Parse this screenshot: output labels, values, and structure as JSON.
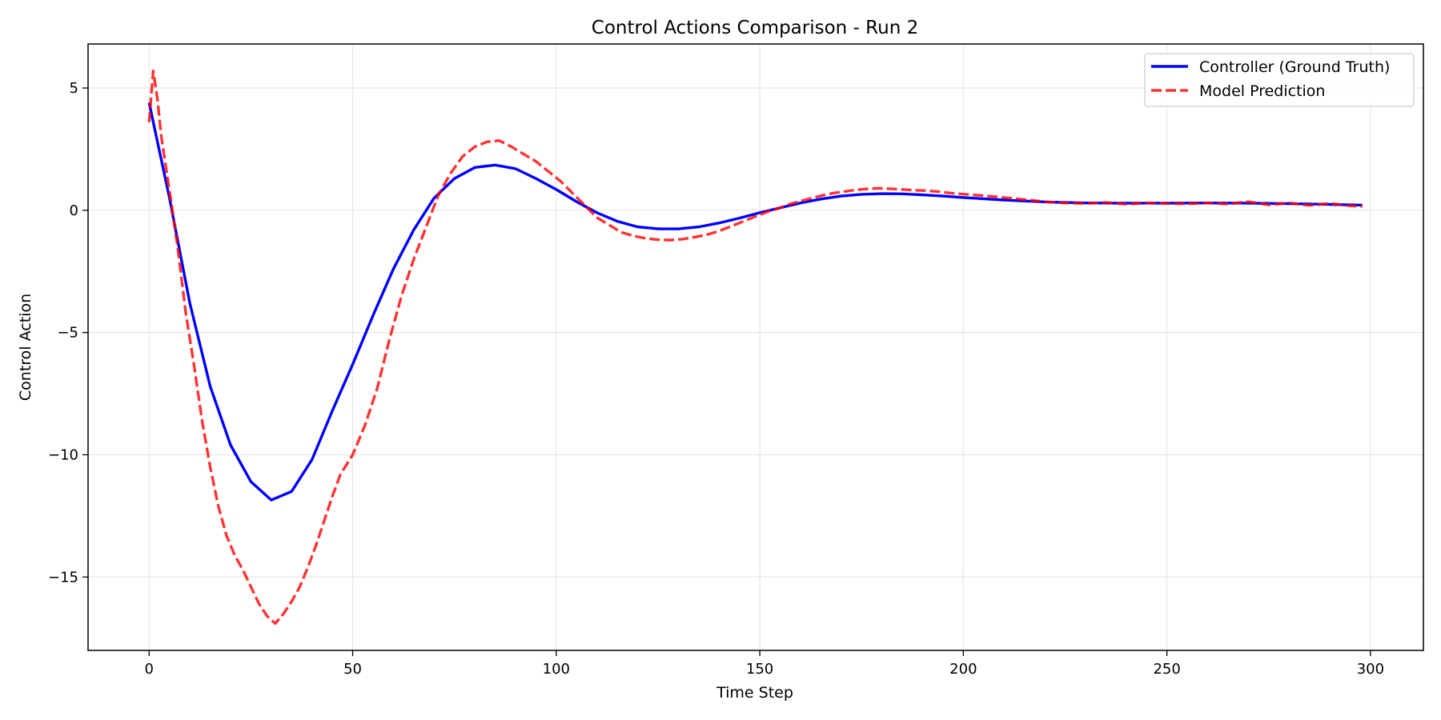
{
  "chart_data": {
    "type": "line",
    "title": "Control Actions Comparison - Run 2",
    "xlabel": "Time Step",
    "ylabel": "Control Action",
    "xlim": [
      -15,
      313
    ],
    "ylim": [
      -18,
      6.8
    ],
    "grid": true,
    "legend_position": "top-right",
    "x_ticks": [
      0,
      50,
      100,
      150,
      200,
      250,
      300
    ],
    "y_ticks": [
      5,
      0,
      -5,
      -10,
      -15
    ],
    "y_tick_labels": [
      "5",
      "0",
      "−5",
      "−10",
      "−15"
    ],
    "x_tick_labels": [
      "0",
      "50",
      "100",
      "150",
      "200",
      "250",
      "300"
    ],
    "series": [
      {
        "name": "Controller (Ground Truth)",
        "color": "#0000ff",
        "style": "solid",
        "points": [
          [
            0,
            4.4
          ],
          [
            5,
            0.5
          ],
          [
            10,
            -3.8
          ],
          [
            15,
            -7.2
          ],
          [
            20,
            -9.6
          ],
          [
            25,
            -11.1
          ],
          [
            30,
            -11.85
          ],
          [
            35,
            -11.5
          ],
          [
            40,
            -10.2
          ],
          [
            45,
            -8.2
          ],
          [
            50,
            -6.3
          ],
          [
            55,
            -4.3
          ],
          [
            60,
            -2.4
          ],
          [
            65,
            -0.8
          ],
          [
            70,
            0.5
          ],
          [
            75,
            1.3
          ],
          [
            80,
            1.75
          ],
          [
            85,
            1.85
          ],
          [
            90,
            1.7
          ],
          [
            95,
            1.3
          ],
          [
            100,
            0.85
          ],
          [
            105,
            0.35
          ],
          [
            110,
            -0.1
          ],
          [
            115,
            -0.45
          ],
          [
            120,
            -0.68
          ],
          [
            125,
            -0.76
          ],
          [
            130,
            -0.76
          ],
          [
            135,
            -0.68
          ],
          [
            140,
            -0.52
          ],
          [
            145,
            -0.32
          ],
          [
            150,
            -0.1
          ],
          [
            155,
            0.1
          ],
          [
            160,
            0.3
          ],
          [
            165,
            0.46
          ],
          [
            170,
            0.58
          ],
          [
            175,
            0.65
          ],
          [
            180,
            0.68
          ],
          [
            185,
            0.67
          ],
          [
            190,
            0.63
          ],
          [
            195,
            0.58
          ],
          [
            200,
            0.52
          ],
          [
            210,
            0.42
          ],
          [
            220,
            0.34
          ],
          [
            230,
            0.3
          ],
          [
            240,
            0.29
          ],
          [
            250,
            0.29
          ],
          [
            260,
            0.3
          ],
          [
            270,
            0.29
          ],
          [
            280,
            0.27
          ],
          [
            290,
            0.24
          ],
          [
            298,
            0.21
          ]
        ]
      },
      {
        "name": "Model Prediction",
        "color": "#ff0000",
        "style": "dashed",
        "points": [
          [
            0,
            3.6
          ],
          [
            1,
            5.7
          ],
          [
            2,
            4.6
          ],
          [
            3,
            3.0
          ],
          [
            5,
            0.8
          ],
          [
            7,
            -1.5
          ],
          [
            9,
            -4.2
          ],
          [
            11,
            -6.3
          ],
          [
            13,
            -8.6
          ],
          [
            15,
            -10.5
          ],
          [
            17,
            -12.1
          ],
          [
            19,
            -13.3
          ],
          [
            21,
            -14.1
          ],
          [
            23,
            -14.7
          ],
          [
            25,
            -15.4
          ],
          [
            27,
            -16.1
          ],
          [
            29,
            -16.6
          ],
          [
            31,
            -16.9
          ],
          [
            33,
            -16.5
          ],
          [
            35,
            -16.0
          ],
          [
            37,
            -15.4
          ],
          [
            39,
            -14.6
          ],
          [
            41,
            -13.7
          ],
          [
            43,
            -12.7
          ],
          [
            45,
            -11.7
          ],
          [
            47,
            -10.8
          ],
          [
            50,
            -10.0
          ],
          [
            53,
            -8.8
          ],
          [
            56,
            -7.3
          ],
          [
            59,
            -5.3
          ],
          [
            62,
            -3.5
          ],
          [
            65,
            -2.0
          ],
          [
            68,
            -0.7
          ],
          [
            71,
            0.6
          ],
          [
            74,
            1.5
          ],
          [
            77,
            2.2
          ],
          [
            80,
            2.6
          ],
          [
            83,
            2.8
          ],
          [
            86,
            2.85
          ],
          [
            89,
            2.6
          ],
          [
            92,
            2.3
          ],
          [
            95,
            2.0
          ],
          [
            98,
            1.6
          ],
          [
            101,
            1.2
          ],
          [
            104,
            0.7
          ],
          [
            107,
            0.2
          ],
          [
            110,
            -0.3
          ],
          [
            113,
            -0.6
          ],
          [
            116,
            -0.9
          ],
          [
            119,
            -1.05
          ],
          [
            122,
            -1.15
          ],
          [
            125,
            -1.2
          ],
          [
            128,
            -1.22
          ],
          [
            131,
            -1.18
          ],
          [
            134,
            -1.1
          ],
          [
            137,
            -1.0
          ],
          [
            140,
            -0.85
          ],
          [
            143,
            -0.65
          ],
          [
            146,
            -0.45
          ],
          [
            149,
            -0.25
          ],
          [
            152,
            -0.05
          ],
          [
            155,
            0.1
          ],
          [
            158,
            0.28
          ],
          [
            161,
            0.42
          ],
          [
            164,
            0.55
          ],
          [
            167,
            0.67
          ],
          [
            170,
            0.75
          ],
          [
            173,
            0.82
          ],
          [
            176,
            0.87
          ],
          [
            179,
            0.9
          ],
          [
            182,
            0.88
          ],
          [
            185,
            0.85
          ],
          [
            188,
            0.82
          ],
          [
            191,
            0.8
          ],
          [
            194,
            0.76
          ],
          [
            197,
            0.7
          ],
          [
            200,
            0.66
          ],
          [
            205,
            0.6
          ],
          [
            210,
            0.52
          ],
          [
            215,
            0.44
          ],
          [
            220,
            0.35
          ],
          [
            225,
            0.3
          ],
          [
            230,
            0.28
          ],
          [
            235,
            0.32
          ],
          [
            240,
            0.25
          ],
          [
            245,
            0.3
          ],
          [
            250,
            0.28
          ],
          [
            255,
            0.27
          ],
          [
            260,
            0.3
          ],
          [
            265,
            0.26
          ],
          [
            270,
            0.35
          ],
          [
            275,
            0.22
          ],
          [
            280,
            0.3
          ],
          [
            285,
            0.2
          ],
          [
            290,
            0.28
          ],
          [
            295,
            0.18
          ],
          [
            298,
            0.16
          ]
        ]
      }
    ]
  }
}
